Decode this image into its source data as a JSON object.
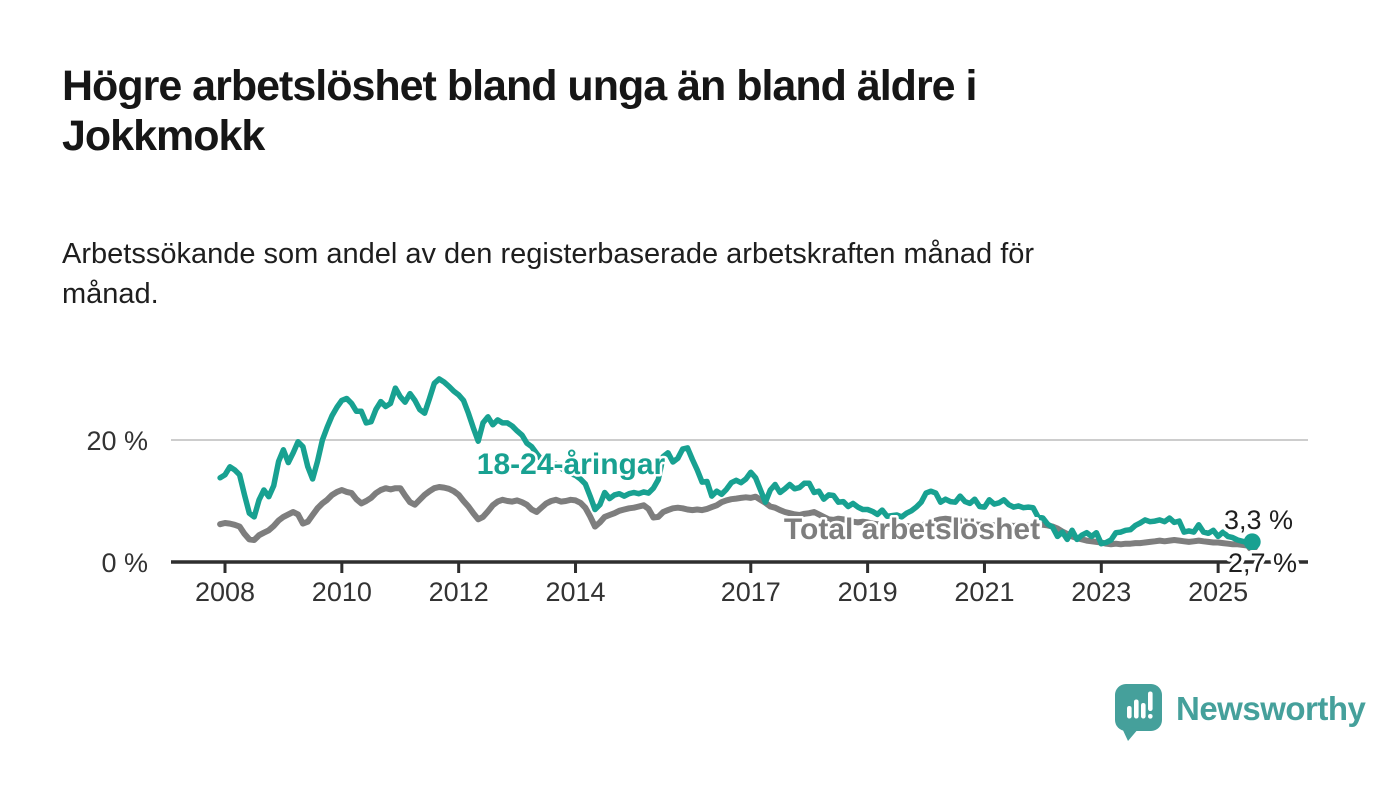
{
  "header": {
    "title": "Högre arbetslöshet bland unga än bland äldre i Jokkmokk",
    "subtitle": "Arbetssökande som andel av den registerbaserade arbetskraften månad för månad."
  },
  "chart_data": {
    "type": "line",
    "title": "Högre arbetslöshet bland unga än bland äldre i Jokkmokk",
    "subtitle": "Arbetssökande som andel av den registerbaserade arbetskraften månad för månad.",
    "x_unit": "month",
    "x_start": "2007-12",
    "x_end": "2025-08",
    "ylim": [
      0,
      32
    ],
    "grid": "y-20-only",
    "legend_position": "inline-labels-on-lines",
    "y_ticks": [
      {
        "value": 20,
        "label": "20 %",
        "gridline": true
      },
      {
        "value": 0,
        "label": "0 %",
        "gridline": false
      }
    ],
    "x_ticks": [
      {
        "year": 2008,
        "label": "2008"
      },
      {
        "year": 2010,
        "label": "2010"
      },
      {
        "year": 2012,
        "label": "2012"
      },
      {
        "year": 2014,
        "label": "2014"
      },
      {
        "year": 2017,
        "label": "2017"
      },
      {
        "year": 2019,
        "label": "2019"
      },
      {
        "year": 2021,
        "label": "2021"
      },
      {
        "year": 2023,
        "label": "2023"
      },
      {
        "year": 2025,
        "label": "2025"
      }
    ],
    "series": [
      {
        "id": "youth",
        "name": "18-24-åringar",
        "color": "#18a191",
        "end_label": "3,3 %",
        "end_value": 3.3,
        "values": [
          13.8,
          14.3,
          15.6,
          15.1,
          14.3,
          11.0,
          8.0,
          7.4,
          10.2,
          11.8,
          10.7,
          12.5,
          16.5,
          18.4,
          16.3,
          17.9,
          19.7,
          18.9,
          15.6,
          13.6,
          16.5,
          20.0,
          22.1,
          24.0,
          25.4,
          26.5,
          26.8,
          26.0,
          24.7,
          24.7,
          22.8,
          23.0,
          25.0,
          26.3,
          25.5,
          26.0,
          28.5,
          27.1,
          26.2,
          27.6,
          26.5,
          25.0,
          24.4,
          26.8,
          29.3,
          30.0,
          29.5,
          28.8,
          28.0,
          27.4,
          26.5,
          24.4,
          22.0,
          19.8,
          22.8,
          23.8,
          22.5,
          23.3,
          22.8,
          22.8,
          22.3,
          21.5,
          20.8,
          19.5,
          18.9,
          17.8,
          16.8,
          15.8,
          15.2,
          16.0,
          15.4,
          14.9,
          14.5,
          14.2,
          13.6,
          12.8,
          10.8,
          8.6,
          9.4,
          11.4,
          10.4,
          11.0,
          11.2,
          10.8,
          11.2,
          11.4,
          11.2,
          11.5,
          11.3,
          12.1,
          13.5,
          17.3,
          17.9,
          16.4,
          17.0,
          18.5,
          18.7,
          16.8,
          15.1,
          13.1,
          13.2,
          10.8,
          11.6,
          11.1,
          11.9,
          13.0,
          13.4,
          13.0,
          13.6,
          14.7,
          13.8,
          11.8,
          9.8,
          11.8,
          12.7,
          11.4,
          12.0,
          12.7,
          12.0,
          12.2,
          12.9,
          12.9,
          11.4,
          11.6,
          10.3,
          11.0,
          10.9,
          9.8,
          9.9,
          9.1,
          9.6,
          9.0,
          8.6,
          8.6,
          8.3,
          7.8,
          8.5,
          7.5,
          7.6,
          7.7,
          7.4,
          8.0,
          8.4,
          9.0,
          9.8,
          11.3,
          11.6,
          11.3,
          9.8,
          10.3,
          9.9,
          9.8,
          10.8,
          9.9,
          9.6,
          10.3,
          9.1,
          9.0,
          10.2,
          9.5,
          9.7,
          10.2,
          9.4,
          9.0,
          9.2,
          8.9,
          9.0,
          8.9,
          7.4,
          7.2,
          6.2,
          5.7,
          4.2,
          4.9,
          3.7,
          5.2,
          3.7,
          4.4,
          4.8,
          4.2,
          4.8,
          3.0,
          3.2,
          3.6,
          4.8,
          4.9,
          5.2,
          5.3,
          6.0,
          6.4,
          6.9,
          6.6,
          6.7,
          6.9,
          6.6,
          7.2,
          6.5,
          6.7,
          4.9,
          5.1,
          4.9,
          6.1,
          4.9,
          4.7,
          5.2,
          4.2,
          4.9,
          4.2,
          4.0,
          3.6,
          3.4,
          3.2,
          3.3
        ]
      },
      {
        "id": "total",
        "name": "Total arbetslöshet",
        "color": "#7e7e7e",
        "end_label": "2,7 %",
        "end_value": 2.7,
        "values": [
          6.2,
          6.4,
          6.3,
          6.1,
          5.8,
          4.6,
          3.7,
          3.6,
          4.4,
          4.8,
          5.2,
          5.9,
          6.8,
          7.4,
          7.8,
          8.2,
          7.8,
          6.3,
          6.6,
          7.7,
          8.8,
          9.6,
          10.2,
          11.0,
          11.5,
          11.8,
          11.5,
          11.3,
          10.3,
          9.6,
          10.0,
          10.5,
          11.3,
          11.8,
          12.1,
          11.9,
          12.1,
          12.1,
          10.9,
          9.8,
          9.4,
          10.2,
          11.0,
          11.6,
          12.1,
          12.3,
          12.2,
          12.0,
          11.6,
          11.0,
          10.0,
          9.1,
          8.0,
          7.0,
          7.4,
          8.3,
          9.3,
          9.9,
          10.2,
          10.0,
          9.9,
          10.1,
          9.8,
          9.4,
          8.6,
          8.2,
          8.9,
          9.6,
          10.0,
          10.2,
          9.9,
          10.0,
          10.2,
          10.1,
          9.7,
          8.9,
          7.5,
          5.8,
          6.5,
          7.4,
          7.7,
          8.0,
          8.4,
          8.6,
          8.8,
          8.9,
          9.1,
          9.3,
          8.7,
          7.3,
          7.4,
          8.2,
          8.5,
          8.8,
          8.9,
          8.8,
          8.6,
          8.5,
          8.6,
          8.5,
          8.7,
          9.0,
          9.3,
          9.8,
          10.1,
          10.3,
          10.4,
          10.5,
          10.6,
          10.5,
          10.7,
          10.2,
          9.7,
          9.1,
          8.9,
          8.5,
          8.2,
          8.0,
          7.8,
          7.7,
          7.9,
          8.0,
          8.2,
          7.8,
          7.4,
          7.0,
          6.9,
          7.1,
          7.0,
          6.8,
          6.6,
          6.5,
          6.6,
          6.5,
          6.3,
          6.2,
          6.0,
          5.8,
          5.9,
          6.1,
          6.0,
          5.9,
          5.8,
          5.9,
          6.0,
          6.2,
          6.4,
          6.8,
          7.0,
          7.1,
          7.0,
          6.9,
          6.8,
          6.6,
          6.4,
          6.2,
          6.1,
          6.2,
          6.1,
          6.0,
          6.0,
          6.1,
          6.0,
          5.9,
          6.0,
          6.1,
          6.0,
          6.1,
          6.2,
          6.1,
          6.0,
          5.8,
          5.5,
          5.0,
          4.6,
          4.2,
          3.9,
          3.7,
          3.5,
          3.4,
          3.3,
          3.2,
          3.0,
          2.9,
          3.0,
          2.9,
          3.0,
          3.0,
          3.1,
          3.1,
          3.2,
          3.3,
          3.4,
          3.5,
          3.4,
          3.5,
          3.6,
          3.5,
          3.4,
          3.3,
          3.4,
          3.5,
          3.4,
          3.3,
          3.2,
          3.2,
          3.1,
          3.0,
          2.9,
          2.9,
          2.8,
          2.7,
          2.7
        ]
      }
    ]
  },
  "branding": {
    "name": "Newsworthy",
    "icon": "newsworthy-chart-speech-bubble",
    "color": "#45a09b"
  }
}
